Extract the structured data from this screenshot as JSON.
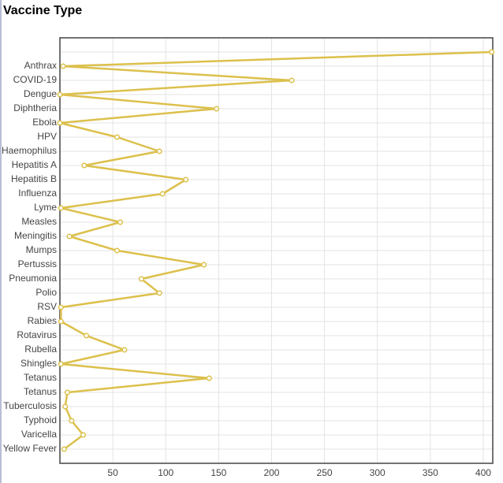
{
  "chart_data": {
    "type": "line",
    "orientation": "horizontal",
    "title": "Vaccine Type",
    "categories": [
      null,
      "Anthrax",
      "COVID-19",
      "Dengue",
      "Diphtheria",
      "Ebola",
      "HPV",
      "Haemophilus",
      "Hepatitis A",
      "Hepatitis B",
      "Influenza",
      "Lyme",
      "Measles",
      "Meningitis",
      "Mumps",
      "Pertussis",
      "Pneumonia",
      "Polio",
      "RSV",
      "Rabies",
      "Rotavirus",
      "Rubella",
      "Shingles",
      "Tetanus",
      "Tetanus",
      "Tuberculosis",
      "Typhoid",
      "Varicella",
      "Yellow Fever"
    ],
    "values": [
      408,
      3,
      219,
      0,
      148,
      0,
      54,
      94,
      23,
      119,
      97,
      1,
      57,
      9,
      54,
      136,
      77,
      94,
      1,
      1,
      25,
      61,
      1,
      141,
      7,
      5,
      11,
      22,
      4
    ],
    "color": "#dcc04c",
    "xlim": [
      0,
      409
    ],
    "xticks": [
      50,
      100,
      150,
      200,
      250,
      300,
      350,
      400
    ],
    "grid": true
  }
}
